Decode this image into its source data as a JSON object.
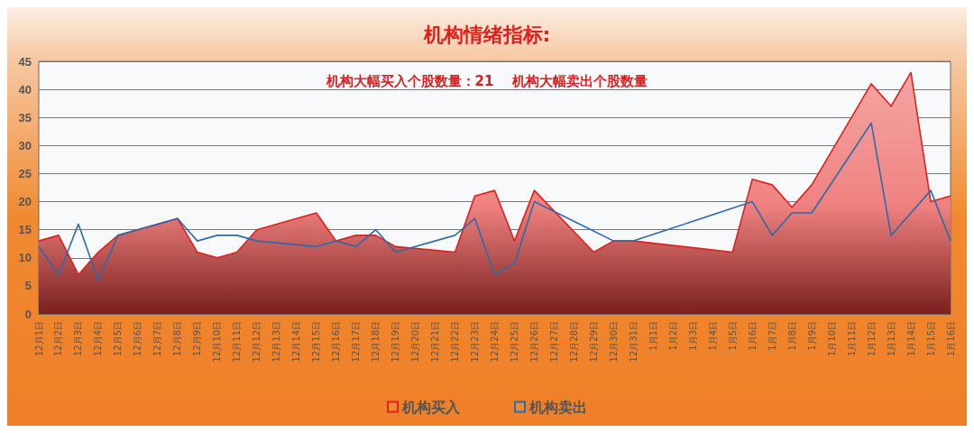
{
  "chart_data": {
    "type": "area",
    "title": "机构情绪指标:",
    "annotations": [
      "机构大幅买入个股数量：21",
      "机构大幅卖出个股数量"
    ],
    "categories": [
      "12月1日",
      "12月2日",
      "12月3日",
      "12月4日",
      "12月5日",
      "12月6日",
      "12月7日",
      "12月8日",
      "12月9日",
      "12月10日",
      "12月11日",
      "12月12日",
      "12月13日",
      "12月14日",
      "12月15日",
      "12月16日",
      "12月17日",
      "12月18日",
      "12月19日",
      "12月20日",
      "12月21日",
      "12月22日",
      "12月23日",
      "12月24日",
      "12月25日",
      "12月26日",
      "12月27日",
      "12月28日",
      "12月29日",
      "12月30日",
      "12月31日",
      "1月1日",
      "1月2日",
      "1月3日",
      "1月4日",
      "1月5日",
      "1月6日",
      "1月7日",
      "1月8日",
      "1月9日",
      "1月10日",
      "1月11日",
      "1月12日",
      "1月13日",
      "1月14日",
      "1月15日",
      "1月16日"
    ],
    "series": [
      {
        "name": "机构买入",
        "color": "#e0201c",
        "values": [
          13,
          14,
          7,
          11,
          14,
          null,
          null,
          17,
          11,
          10,
          11,
          15,
          null,
          null,
          18,
          13,
          14,
          14,
          12,
          null,
          null,
          11,
          21,
          22,
          13,
          22,
          null,
          null,
          11,
          13,
          13,
          null,
          null,
          null,
          null,
          11,
          24,
          23,
          19,
          23,
          null,
          null,
          41,
          37,
          43,
          20,
          21
        ]
      },
      {
        "name": "机构卖出",
        "type": "line",
        "color": "#2f6aa8",
        "values": [
          12,
          7,
          16,
          6,
          14,
          null,
          null,
          17,
          13,
          14,
          14,
          13,
          null,
          null,
          12,
          13,
          12,
          15,
          11,
          null,
          null,
          14,
          17,
          7,
          9,
          20,
          null,
          null,
          null,
          13,
          13,
          null,
          null,
          null,
          null,
          null,
          20,
          14,
          18,
          18,
          null,
          null,
          34,
          14,
          null,
          22,
          13
        ]
      }
    ],
    "ylim": [
      0,
      45
    ],
    "yticks": [
      0,
      5,
      10,
      15,
      20,
      25,
      30,
      35,
      40,
      45
    ],
    "grid": "y",
    "legend": "bottom",
    "marker": "none",
    "line_style": "solid"
  }
}
